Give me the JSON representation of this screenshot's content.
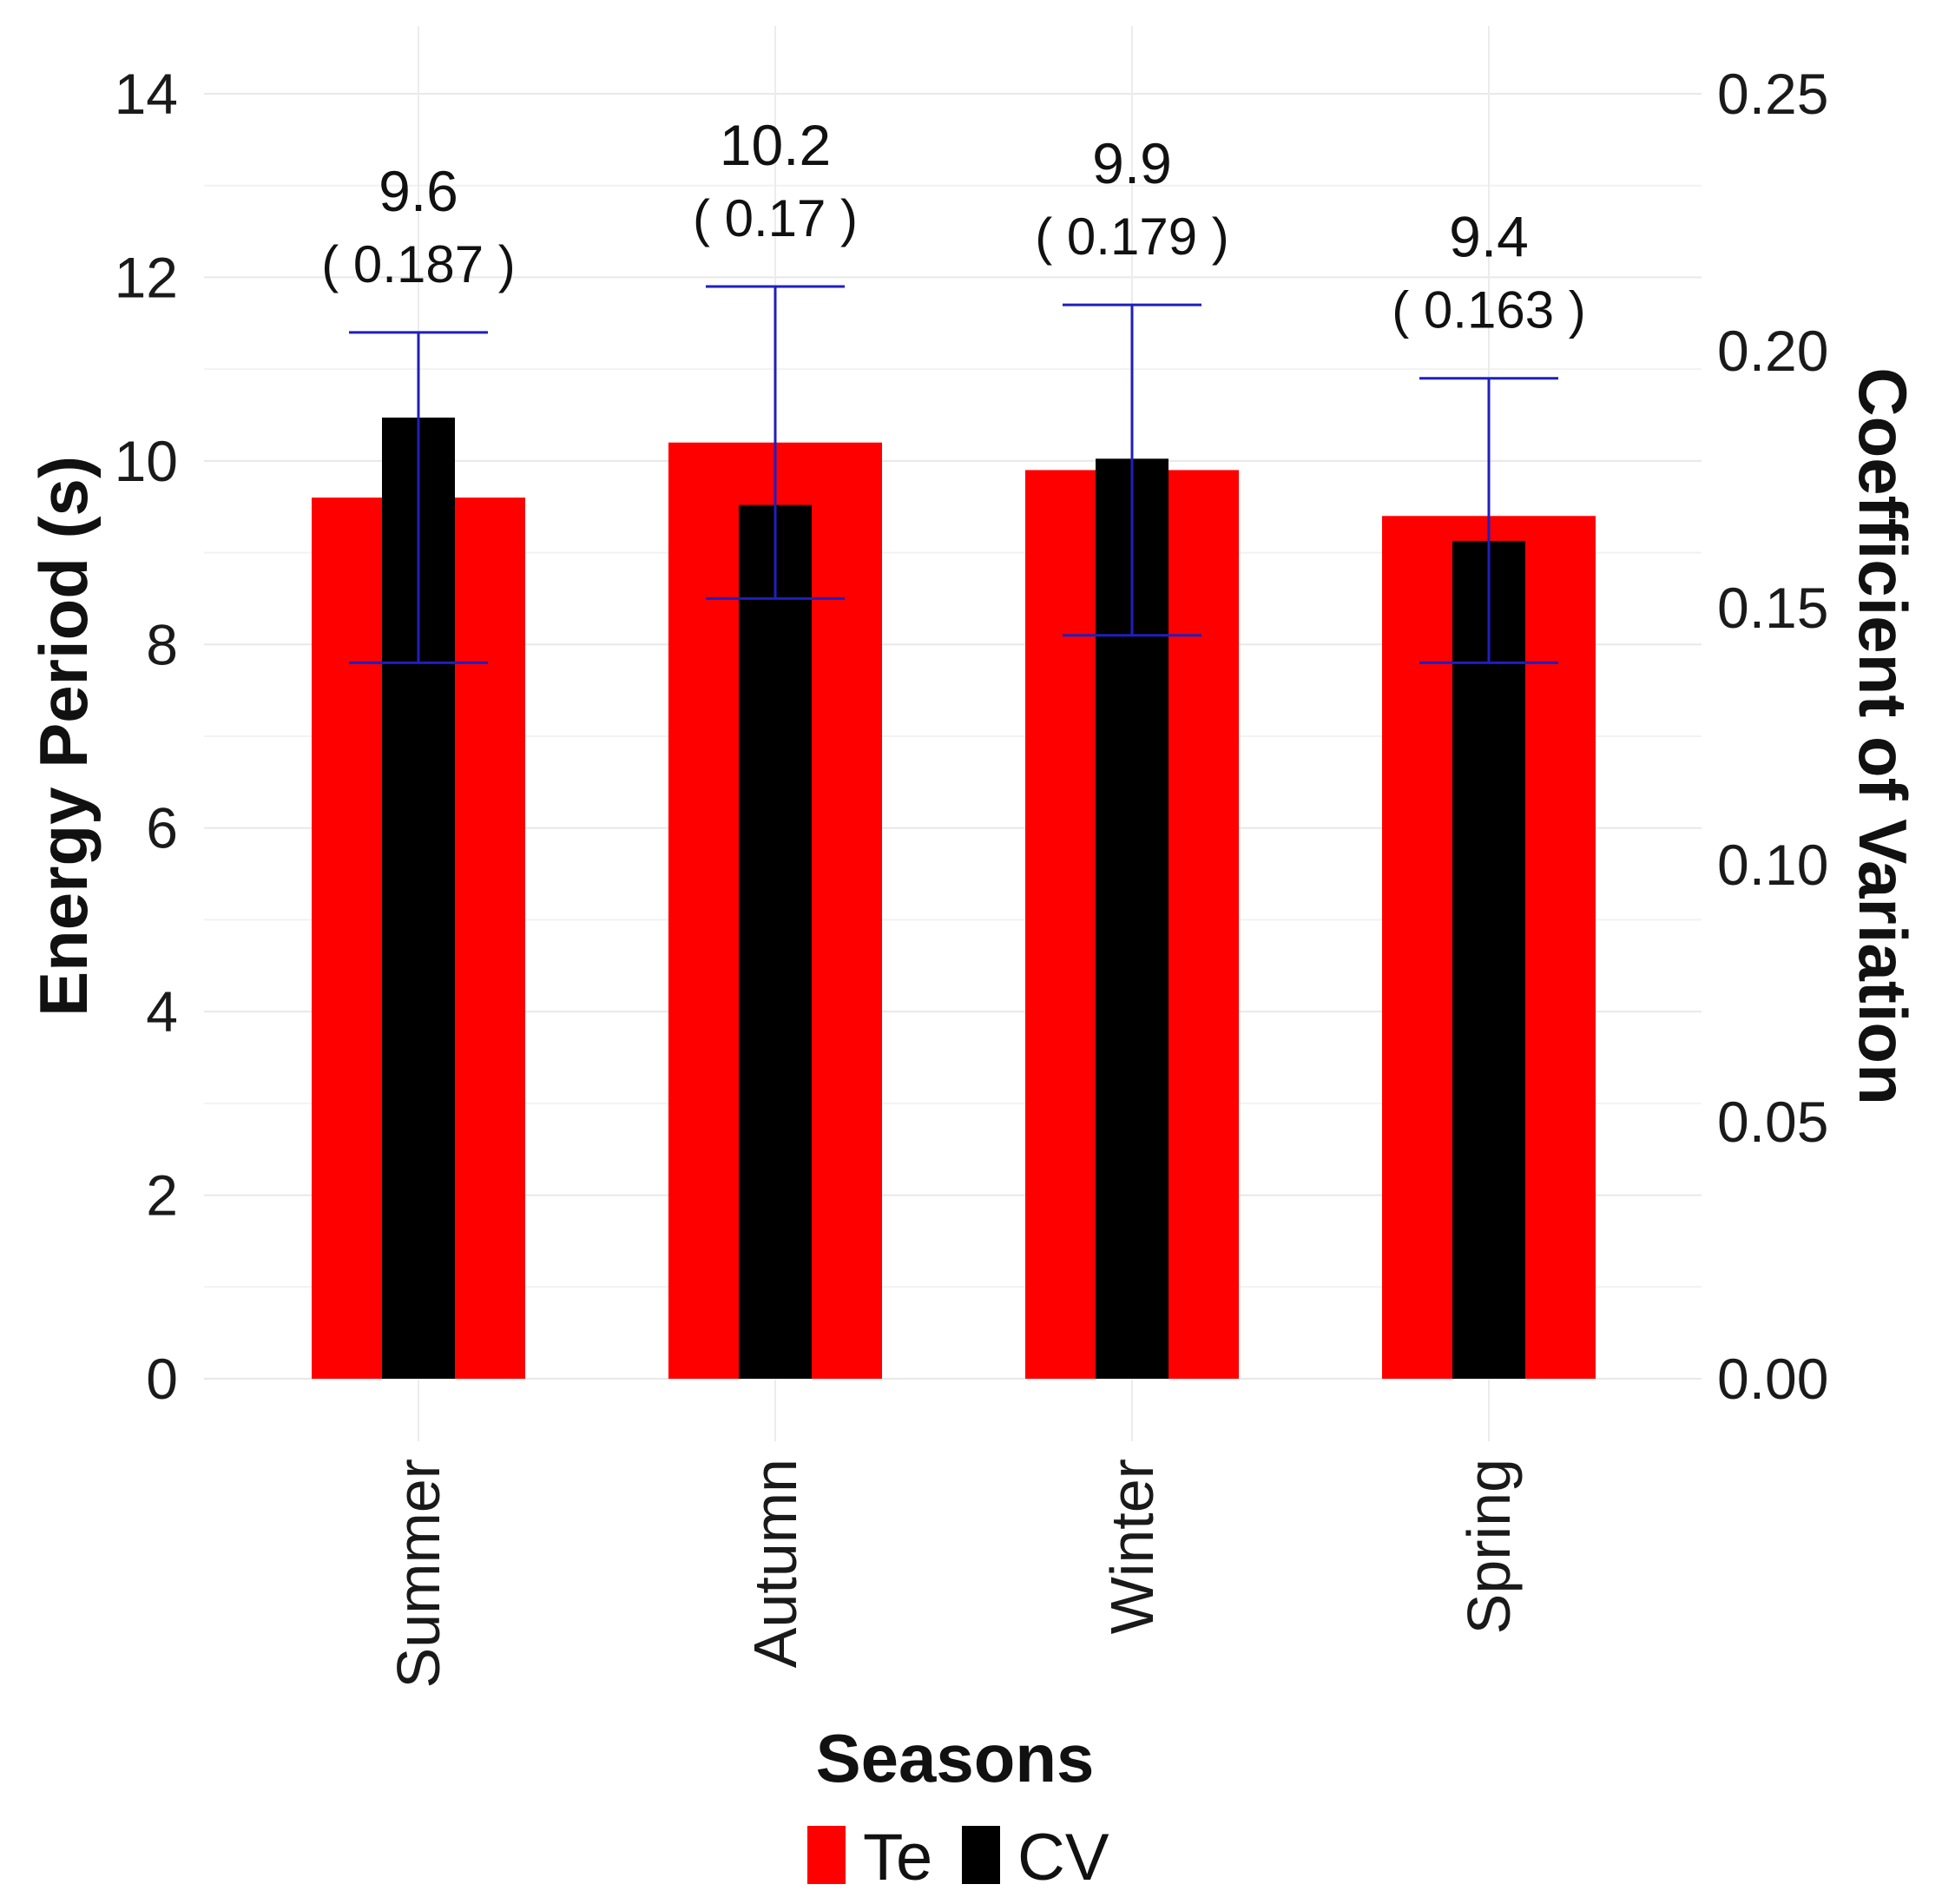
{
  "chart_data": {
    "type": "bar",
    "title": "",
    "xlabel": "Seasons",
    "ylabel": "Energy Period (s)",
    "y2label": "Coefficient of Variation",
    "categories": [
      "Summer",
      "Autumn",
      "Winter",
      "Spring"
    ],
    "ylim": [
      0,
      14
    ],
    "y2lim": [
      0,
      0.25
    ],
    "yticks": [
      "0",
      "2",
      "4",
      "6",
      "8",
      "10",
      "12",
      "14"
    ],
    "y2ticks": [
      "0.00",
      "0.05",
      "0.10",
      "0.15",
      "0.20",
      "0.25"
    ],
    "series": [
      {
        "name": "Te",
        "color": "#ff0000",
        "axis": "left",
        "values": [
          9.6,
          10.2,
          9.9,
          9.4
        ],
        "error_low": [
          7.8,
          8.5,
          8.1,
          7.8
        ],
        "error_high": [
          11.4,
          11.9,
          11.7,
          10.9
        ],
        "error_color": "#1f1fbf"
      },
      {
        "name": "CV",
        "color": "#000000",
        "axis": "right",
        "values": [
          0.187,
          0.17,
          0.179,
          0.163
        ]
      }
    ],
    "value_labels": [
      "9.6",
      "10.2",
      "9.9",
      "9.4"
    ],
    "cv_labels": [
      "( 0.187 )",
      "( 0.17 )",
      "( 0.179 )",
      "( 0.163 )"
    ],
    "legend": {
      "placement": "bottom",
      "entries": [
        "Te",
        "CV"
      ]
    },
    "grid": true
  }
}
